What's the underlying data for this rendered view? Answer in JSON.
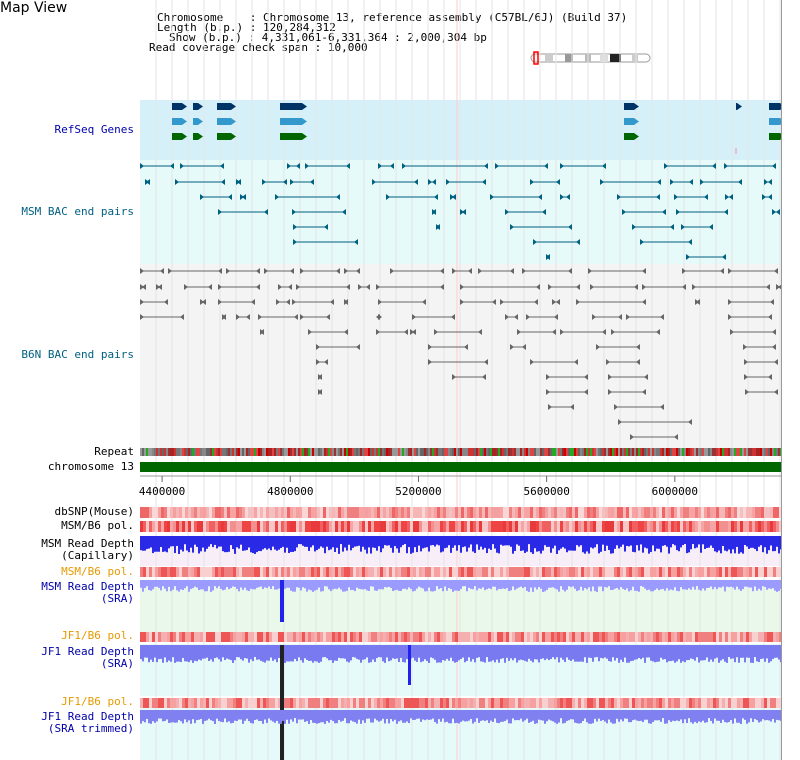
{
  "page": {
    "title": "Map View"
  },
  "info": {
    "chromosome_label": "Chromosome",
    "chromosome_value": "Chromosome 13, reference assembly (C57BL/6J) (Build 37)",
    "length_label": "Length (b.p.)",
    "length_value": "120,284,312",
    "show_label": "Show (b.p.)",
    "show_value": "4,331,061-6,331,364 : 2,000,304 bp",
    "coverage_label": "Read coverage check span",
    "coverage_value": "10,000"
  },
  "tracks": {
    "refseq": "RefSeq Genes",
    "msm_bac": "MSM BAC end pairs",
    "b6n_bac": "B6N BAC end pairs",
    "repeat": "Repeat",
    "chromosome": "chromosome 13",
    "dbsnp": "dbSNP(Mouse)",
    "msm_b6_pol": "MSM/B6 pol.",
    "msm_read_cap_1": "MSM Read Depth",
    "msm_read_cap_2": "(Capillary)",
    "msm_b6_pol_2": "MSM/B6 pol.",
    "msm_read_sra_1": "MSM Read Depth",
    "msm_read_sra_2": "(SRA)",
    "jf1_pol_1": "JF1/B6 pol.",
    "jf1_read_1": "JF1 Read Depth",
    "jf1_read_2": "(SRA)",
    "jf1_pol_2": "JF1/B6 pol.",
    "jf1_trim_1": "JF1 Read Depth",
    "jf1_trim_2": "(SRA trimmed)"
  },
  "axis": {
    "start": 4331061,
    "end": 6331364,
    "ticks": [
      "4400000",
      "4800000",
      "5200000",
      "5600000",
      "6000000"
    ],
    "tick_values": [
      4400000,
      4800000,
      5200000,
      5600000,
      6000000
    ]
  },
  "colors": {
    "refseq_bg": "#d6f0fa",
    "msm_bg": "#e6fafa",
    "b6n_bg": "#f4f4f4",
    "refseq_dark": "#003366",
    "refseq_mid": "#3399cc",
    "refseq_green": "#006600",
    "msm_line": "#006080",
    "b6n_line": "#666666",
    "chrom_green": "#006600",
    "depth_blue": "#2222dd",
    "sra_blue": "#8888ff"
  }
}
